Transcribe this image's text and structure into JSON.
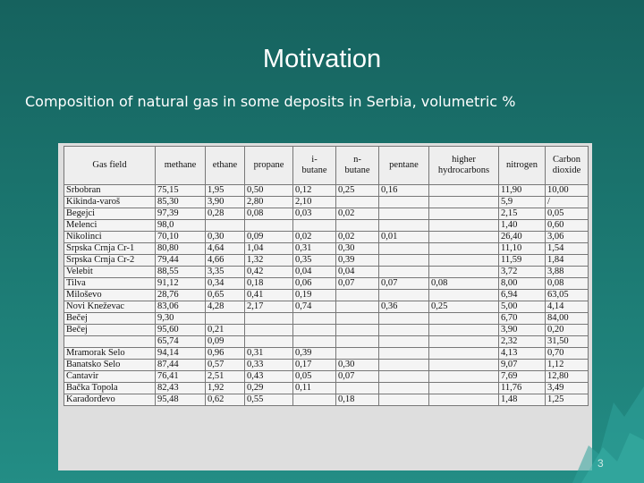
{
  "slide": {
    "title": "Motivation",
    "subtitle": "Composition of natural gas in some deposits in Serbia, volumetric %",
    "page_number": "3"
  },
  "table": {
    "headers": [
      "Gas field",
      "methane",
      "ethane",
      "propane",
      "i-\nbutane",
      "n-\nbutane",
      "pentane",
      "higher\nhydrocarbons",
      "nitrogen",
      "Carbon\ndioxide"
    ],
    "rows": [
      [
        "Srbobran",
        "75,15",
        "1,95",
        "0,50",
        "0,12",
        "0,25",
        "0,16",
        "",
        "11,90",
        "10,00"
      ],
      [
        "Kikinda-varoš",
        "85,30",
        "3,90",
        "2,80",
        "2,10",
        "",
        "",
        "",
        "5,9",
        "/"
      ],
      [
        "Begejci",
        "97,39",
        "0,28",
        "0,08",
        "0,03",
        "0,02",
        "",
        "",
        "2,15",
        "0,05"
      ],
      [
        "Melenci",
        "98,0",
        "",
        "",
        "",
        "",
        "",
        "",
        "1,40",
        "0,60"
      ],
      [
        "Nikolinci",
        "70,10",
        "0,30",
        "0,09",
        "0,02",
        "0,02",
        "0,01",
        "",
        "26,40",
        "3,06"
      ],
      [
        "Srpska Crnja Cr-1",
        "80,80",
        "4,64",
        "1,04",
        "0,31",
        "0,30",
        "",
        "",
        "11,10",
        "1,54"
      ],
      [
        "Srpska Crnja Cr-2",
        "79,44",
        "4,66",
        "1,32",
        "0,35",
        "0,39",
        "",
        "",
        "11,59",
        "1,84"
      ],
      [
        "Velebit",
        "88,55",
        "3,35",
        "0,42",
        "0,04",
        "0,04",
        "",
        "",
        "3,72",
        "3,88"
      ],
      [
        "Tilva",
        "91,12",
        "0,34",
        "0,18",
        "0,06",
        "0,07",
        "0,07",
        "0,08",
        "8,00",
        "0,08"
      ],
      [
        "Miloševo",
        "28,76",
        "0,65",
        "0,41",
        "0,19",
        "",
        "",
        "",
        "6,94",
        "63,05"
      ],
      [
        "Novi Kneževac",
        "83,06",
        "4,28",
        "2,17",
        "0,74",
        "",
        "0,36",
        "0,25",
        "5,00",
        "4,14"
      ],
      [
        "Bečej",
        "9,30",
        "",
        "",
        "",
        "",
        "",
        "",
        "6,70",
        "84,00"
      ],
      [
        "Bečej",
        "95,60",
        "0,21",
        "",
        "",
        "",
        "",
        "",
        "3,90",
        "0,20"
      ],
      [
        "",
        "65,74",
        "0,09",
        "",
        "",
        "",
        "",
        "",
        "2,32",
        "31,50"
      ],
      [
        "Mramorak Selo",
        "94,14",
        "0,96",
        "0,31",
        "0,39",
        "",
        "",
        "",
        "4,13",
        "0,70"
      ],
      [
        "Banatsko Selo",
        "87,44",
        "0,57",
        "0,33",
        "0,17",
        "0,30",
        "",
        "",
        "9,07",
        "1,12"
      ],
      [
        "Čantavir",
        "76,41",
        "2,51",
        "0,43",
        "0,05",
        "0,07",
        "",
        "",
        "7,69",
        "12,80"
      ],
      [
        "Bačka Topola",
        "82,43",
        "1,92",
        "0,29",
        "0,11",
        "",
        "",
        "",
        "11,76",
        "3,49"
      ],
      [
        "Karađorđevo",
        "95,48",
        "0,62",
        "0,55",
        "",
        "0,18",
        "",
        "",
        "1,48",
        "1,25"
      ]
    ]
  }
}
